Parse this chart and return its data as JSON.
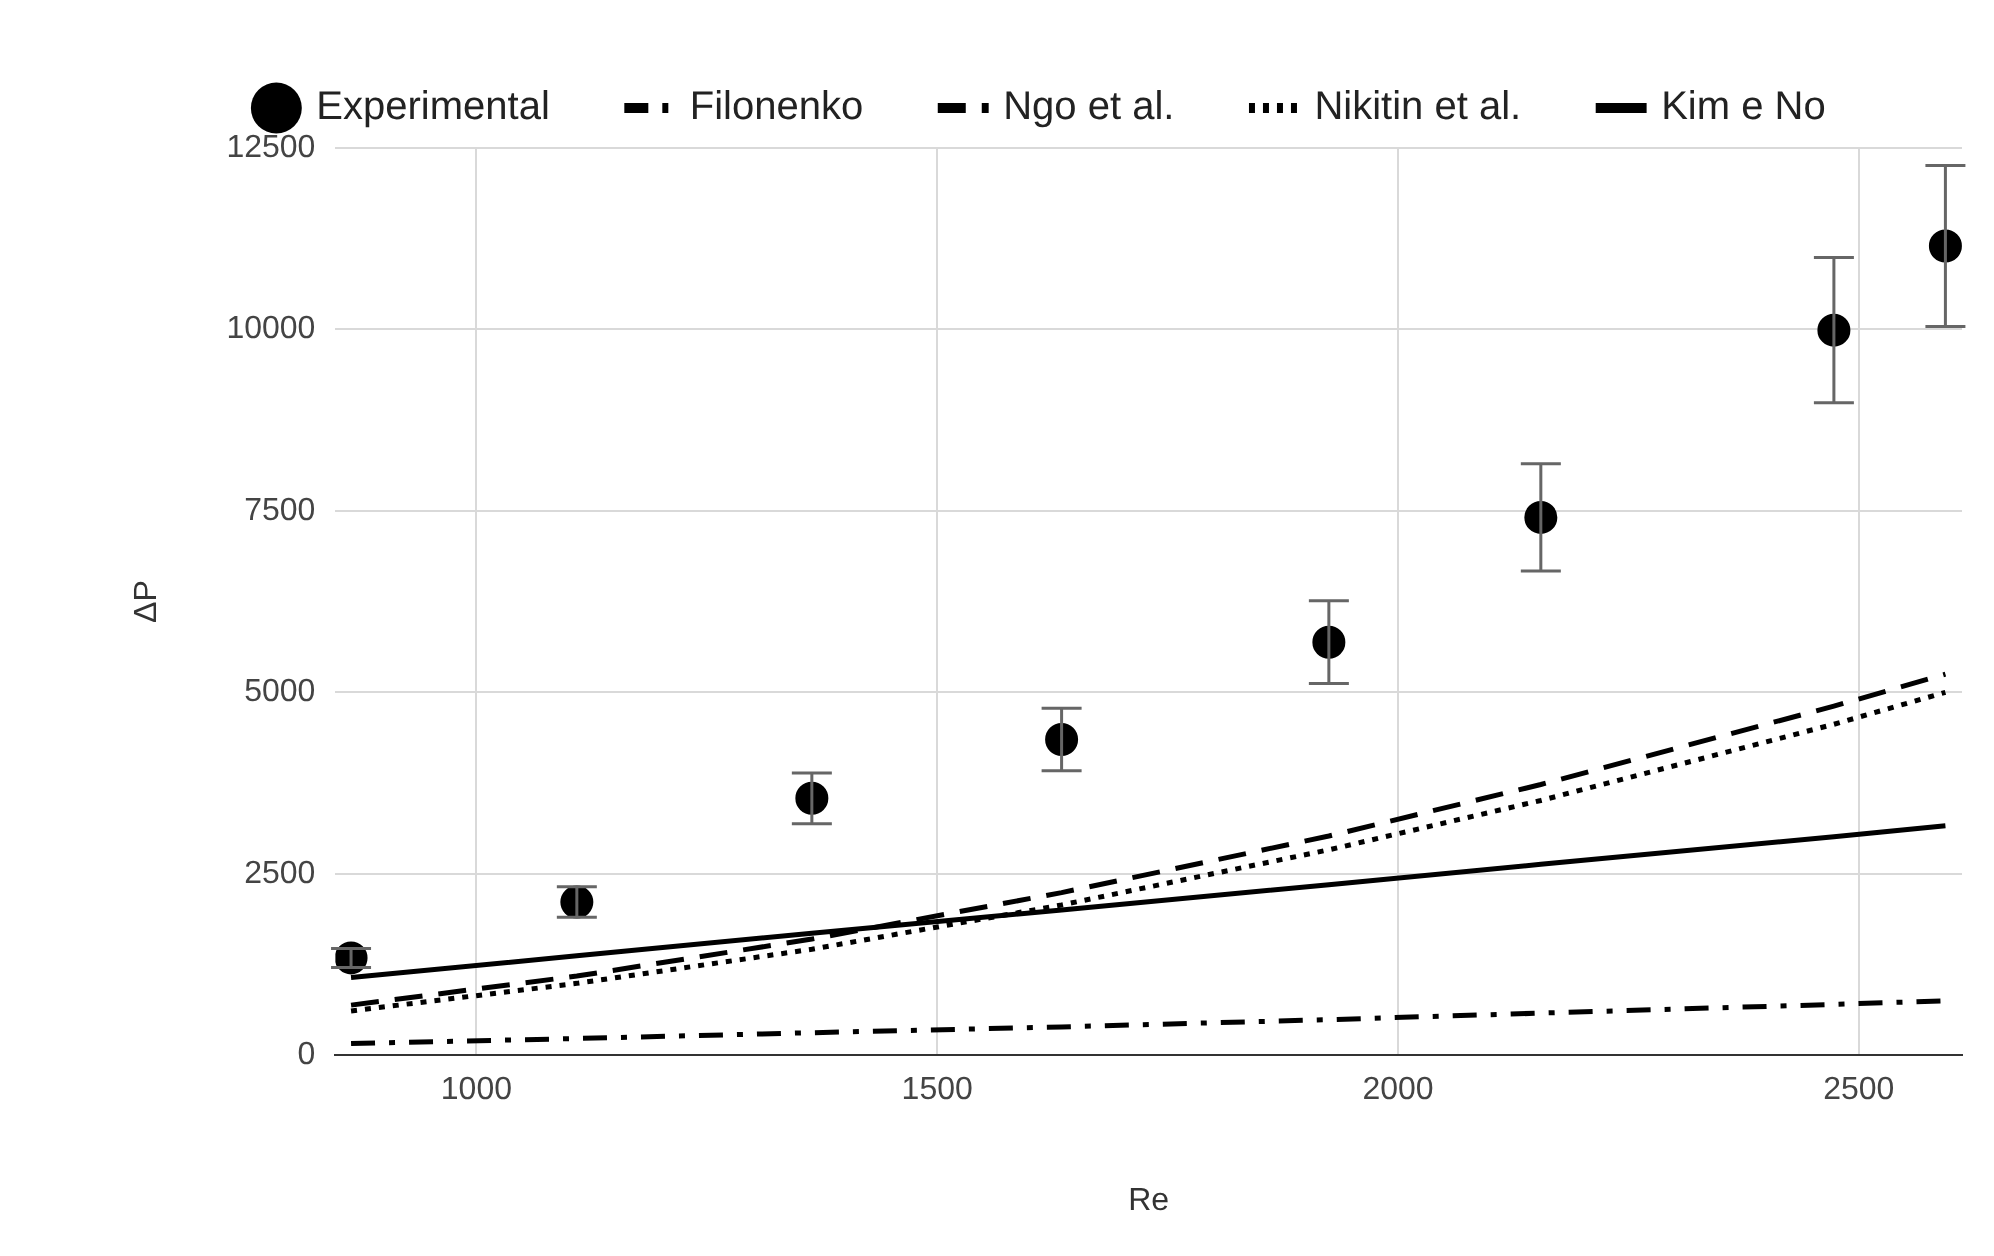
{
  "chart_data": {
    "type": "scatter",
    "xlabel": "Re",
    "ylabel": "ΔP",
    "x": [
      864,
      1109,
      1364,
      1635,
      1925,
      2155,
      2473,
      2594
    ],
    "series": [
      {
        "name": "Experimental",
        "color": "#000000",
        "marker": "circle",
        "values": [
          1340,
          2110,
          3540,
          4350,
          5690,
          7410,
          9990,
          11150
        ],
        "errors": [
          130,
          210,
          350,
          430,
          570,
          740,
          1000,
          1110
        ]
      },
      {
        "name": "Filonenko",
        "type": "line",
        "color": "#000000",
        "marker": "none",
        "line_style": "dashdot",
        "values": [
          160,
          230,
          310,
          390,
          490,
          580,
          700,
          750
        ]
      },
      {
        "name": "Ngo et al.",
        "type": "line",
        "color": "#000000",
        "marker": "none",
        "line_style": "dashed",
        "values": [
          690,
          1090,
          1600,
          2240,
          3020,
          3730,
          4810,
          5250
        ]
      },
      {
        "name": "Nikitin et al.",
        "type": "line",
        "color": "#000000",
        "marker": "none",
        "line_style": "dotted",
        "values": [
          610,
          990,
          1460,
          2070,
          2830,
          3510,
          4560,
          5000
        ]
      },
      {
        "name": "Kim e No",
        "type": "line",
        "color": "#000000",
        "marker": "none",
        "line_style": "solid",
        "values": [
          1070,
          1370,
          1680,
          2000,
          2350,
          2630,
          3010,
          3160
        ]
      }
    ],
    "xlim": [
      847,
      2612
    ],
    "xticks": [
      1000,
      1500,
      2000,
      2500
    ],
    "ylim": [
      0,
      12500
    ],
    "yticks": [
      0,
      2500,
      5000,
      7500,
      10000,
      12500
    ],
    "grid": true,
    "legend": "top"
  }
}
